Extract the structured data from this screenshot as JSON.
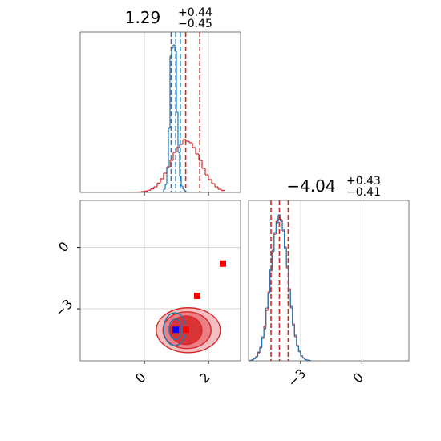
{
  "chart_data": [
    {
      "type": "histogram",
      "title": "1.29",
      "title_sup": "+0.44",
      "title_sub": "−0.45",
      "xlim": [
        -2,
        3
      ],
      "xticks": [
        0,
        2
      ],
      "ylim": [
        0,
        1
      ],
      "grid": true,
      "series": [
        {
          "color": "#d62728",
          "bins": [
            -0.5,
            -0.4,
            -0.3,
            -0.2,
            -0.1,
            0,
            0.1,
            0.2,
            0.3,
            0.4,
            0.5,
            0.6,
            0.7,
            0.8,
            0.9,
            1.0,
            1.1,
            1.2,
            1.3,
            1.4,
            1.5,
            1.6,
            1.7,
            1.8,
            1.9,
            2.0,
            2.1,
            2.2,
            2.3,
            2.4,
            2.5
          ],
          "values": [
            0,
            0,
            0.002,
            0.003,
            0.005,
            0.008,
            0.014,
            0.022,
            0.035,
            0.058,
            0.085,
            0.12,
            0.16,
            0.2,
            0.25,
            0.28,
            0.3,
            0.33,
            0.32,
            0.31,
            0.28,
            0.24,
            0.2,
            0.15,
            0.11,
            0.08,
            0.055,
            0.035,
            0.02,
            0.012
          ],
          "quantiles": [
            0.84,
            1.29,
            1.73
          ]
        },
        {
          "color": "#1f77b4",
          "bins": [
            0.5,
            0.55,
            0.6,
            0.65,
            0.7,
            0.75,
            0.8,
            0.85,
            0.9,
            0.95,
            1.0,
            1.05,
            1.1,
            1.15,
            1.2,
            1.25,
            1.3,
            1.35,
            1.4,
            1.45,
            1.5
          ],
          "values": [
            0,
            0,
            0.02,
            0.05,
            0.15,
            0.4,
            0.85,
            0.9,
            0.92,
            0.88,
            0.5,
            0.25,
            0.1,
            0.04,
            0.02,
            0.01,
            0,
            0,
            0,
            0
          ],
          "quantiles": [
            0.84,
            0.98,
            1.12
          ]
        }
      ]
    },
    {
      "type": "contour",
      "xlim": [
        -2,
        3
      ],
      "xticks": [
        0,
        2
      ],
      "ylim": [
        -5.55,
        2.3
      ],
      "yticks": [
        0,
        {
          "value": -3,
          "label": "−3"
        }
      ],
      "grid": true,
      "contours": [
        {
          "color": "#d62728",
          "levels": [
            {
              "cx": 1.37,
              "cy": -4.05,
              "rx": 1.0,
              "ry": 1.1,
              "fill": "#f3b3b5"
            },
            {
              "cx": 1.33,
              "cy": -4.05,
              "rx": 0.75,
              "ry": 0.9,
              "fill": "#e8767a"
            },
            {
              "cx": 1.3,
              "cy": -4.05,
              "rx": 0.5,
              "ry": 0.7,
              "fill": "#d62728"
            }
          ]
        },
        {
          "color": "#1f77b4",
          "levels": [
            {
              "cx": 0.95,
              "cy": -4.0,
              "rx": 0.35,
              "ry": 0.8,
              "fill": "none"
            },
            {
              "cx": 0.97,
              "cy": -4.0,
              "rx": 0.2,
              "ry": 0.5,
              "fill": "none"
            }
          ]
        }
      ],
      "points": [
        {
          "x": 2.45,
          "y": -0.79,
          "color": "#ff0000"
        },
        {
          "x": 1.65,
          "y": -2.37,
          "color": "#ff0000"
        },
        {
          "x": 1.3,
          "y": -4.03,
          "color": "#ff0000"
        },
        {
          "x": 0.98,
          "y": -4.03,
          "color": "#0000ff"
        }
      ]
    },
    {
      "type": "histogram",
      "title": "−4.04",
      "title_sup": "+0.43",
      "title_sub": "−0.41",
      "xlim": [
        -5.55,
        2.3
      ],
      "xticks": [
        {
          "value": -3,
          "label": "−3"
        },
        0
      ],
      "ylim": [
        0,
        1
      ],
      "grid": true,
      "series": [
        {
          "color": "#d62728",
          "bins": [
            -5.5,
            -5.4,
            -5.3,
            -5.2,
            -5.1,
            -5.0,
            -4.9,
            -4.8,
            -4.7,
            -4.6,
            -4.5,
            -4.4,
            -4.3,
            -4.2,
            -4.1,
            -4.0,
            -3.9,
            -3.8,
            -3.7,
            -3.6,
            -3.5,
            -3.4,
            -3.3,
            -3.2,
            -3.1,
            -3.0,
            -2.9,
            -2.8,
            -2.7,
            -2.6,
            -2.5
          ],
          "values": [
            0.003,
            0.007,
            0.014,
            0.027,
            0.05,
            0.086,
            0.14,
            0.216,
            0.315,
            0.43,
            0.56,
            0.69,
            0.79,
            0.87,
            0.9,
            0.88,
            0.81,
            0.71,
            0.58,
            0.45,
            0.33,
            0.23,
            0.15,
            0.096,
            0.056,
            0.031,
            0.016,
            0.008,
            0.004,
            0.002
          ],
          "quantiles": [
            -4.45,
            -4.04,
            -3.61
          ]
        },
        {
          "color": "#1f77b4",
          "bins": [
            -5.5,
            -5.4,
            -5.3,
            -5.2,
            -5.1,
            -5.0,
            -4.9,
            -4.8,
            -4.7,
            -4.6,
            -4.5,
            -4.4,
            -4.3,
            -4.2,
            -4.1,
            -4.0,
            -3.9,
            -3.8,
            -3.7,
            -3.6,
            -3.5,
            -3.4,
            -3.3,
            -3.2,
            -3.1,
            -3.0,
            -2.9,
            -2.8,
            -2.7,
            -2.6,
            -2.5
          ],
          "values": [
            0.002,
            0.006,
            0.016,
            0.025,
            0.055,
            0.08,
            0.15,
            0.2,
            0.33,
            0.42,
            0.57,
            0.68,
            0.8,
            0.86,
            0.91,
            0.87,
            0.82,
            0.7,
            0.59,
            0.44,
            0.34,
            0.22,
            0.16,
            0.09,
            0.06,
            0.03,
            0.018,
            0.007,
            0.005,
            0.001
          ],
          "quantiles": []
        }
      ]
    }
  ]
}
